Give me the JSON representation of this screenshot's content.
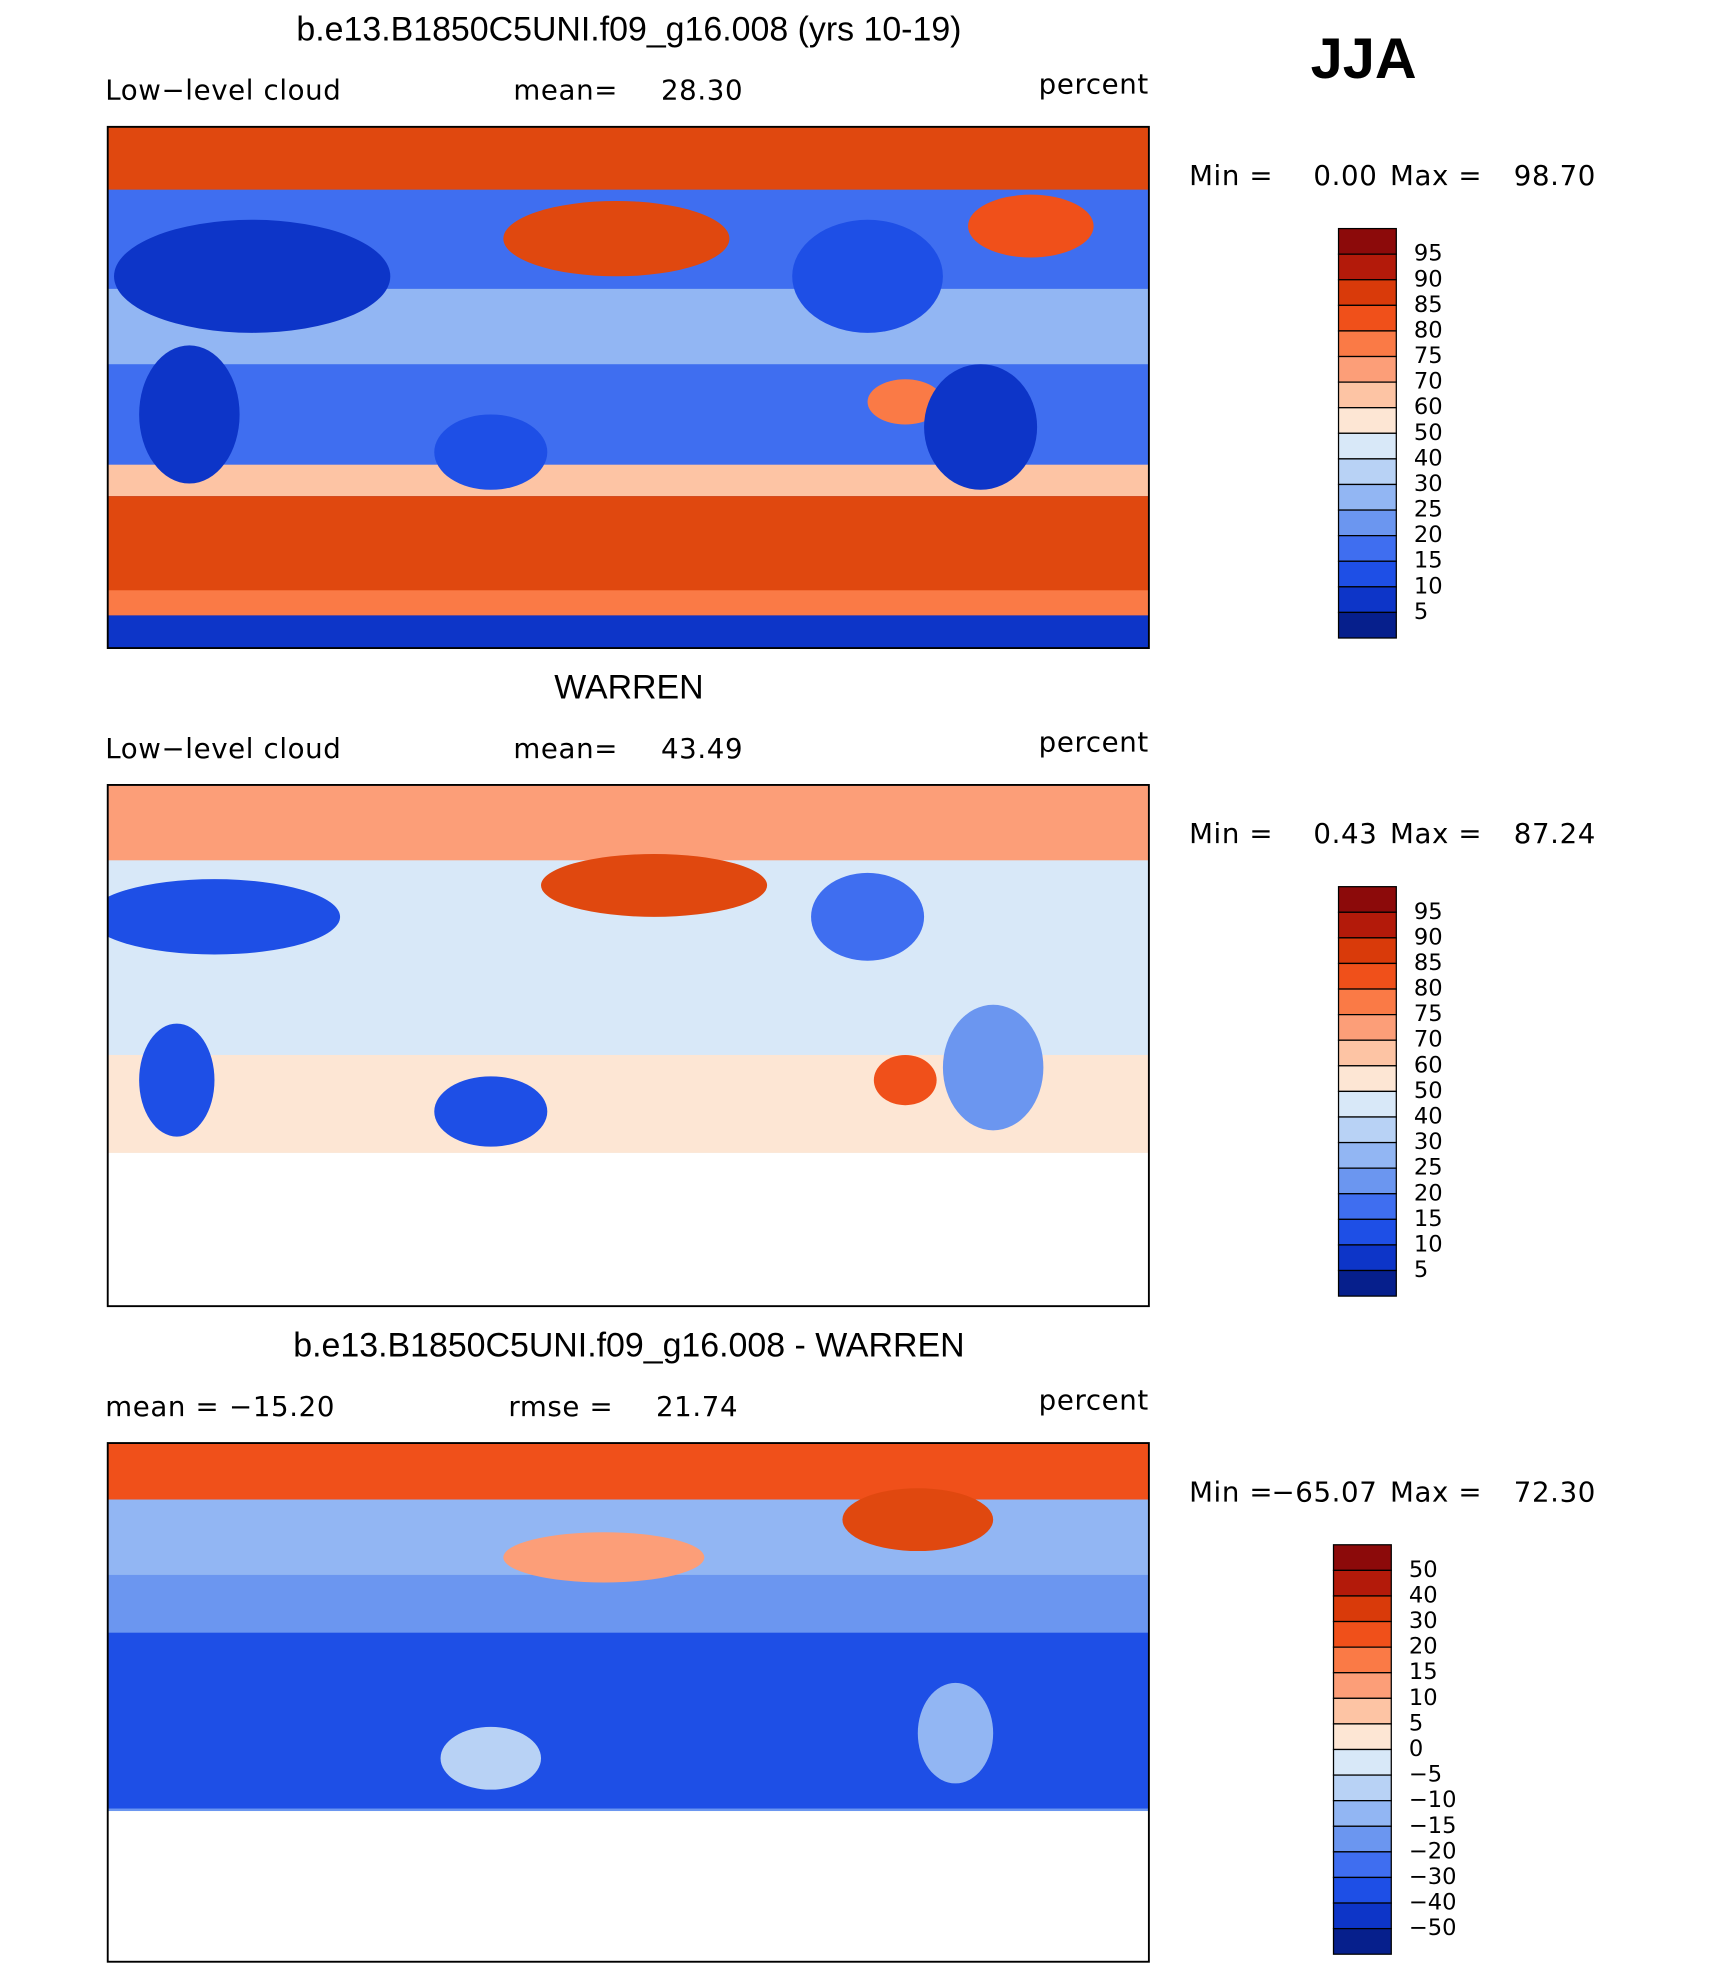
{
  "header": {
    "season": "JJA"
  },
  "panels": [
    {
      "title": "b.e13.B1850C5UNI.f09_g16.008 (yrs 10-19)",
      "left_label": "Low−level cloud",
      "stats": [
        {
          "label": "mean=",
          "value": "28.30"
        }
      ],
      "units": "percent",
      "range": {
        "min_label": "Min =",
        "min": "0.00",
        "max_label": "Max =",
        "max": "98.70"
      },
      "colorbar": {
        "labels": [
          "95",
          "90",
          "85",
          "80",
          "75",
          "70",
          "60",
          "50",
          "40",
          "30",
          "25",
          "20",
          "15",
          "10",
          "5"
        ],
        "colors": [
          "#8c0a0a",
          "#b31a0a",
          "#d93a0a",
          "#f0501a",
          "#fa7a46",
          "#fc9e78",
          "#fdc4a4",
          "#fde6d4",
          "#d8e8f8",
          "#b8d2f5",
          "#92b6f3",
          "#6b96f0",
          "#3f6ef0",
          "#1e4fe6",
          "#0d35c8",
          "#061f8c"
        ]
      }
    },
    {
      "title": "WARREN",
      "left_label": "Low−level cloud",
      "stats": [
        {
          "label": "mean=",
          "value": "43.49"
        }
      ],
      "units": "percent",
      "range": {
        "min_label": "Min =",
        "min": "0.43",
        "max_label": "Max =",
        "max": "87.24"
      },
      "colorbar": {
        "labels": [
          "95",
          "90",
          "85",
          "80",
          "75",
          "70",
          "60",
          "50",
          "40",
          "30",
          "25",
          "20",
          "15",
          "10",
          "5"
        ],
        "colors": [
          "#8c0a0a",
          "#b31a0a",
          "#d93a0a",
          "#f0501a",
          "#fa7a46",
          "#fc9e78",
          "#fdc4a4",
          "#fde6d4",
          "#d8e8f8",
          "#b8d2f5",
          "#92b6f3",
          "#6b96f0",
          "#3f6ef0",
          "#1e4fe6",
          "#0d35c8",
          "#061f8c"
        ]
      }
    },
    {
      "title": "b.e13.B1850C5UNI.f09_g16.008 - WARREN",
      "left_label": null,
      "stats": [
        {
          "label": "mean =",
          "value": "−15.20"
        },
        {
          "label": "rmse =",
          "value": "21.74"
        }
      ],
      "units": "percent",
      "range": {
        "min_label": "Min =",
        "min": "−65.07",
        "max_label": "Max =",
        "max": "72.30"
      },
      "colorbar": {
        "labels": [
          "50",
          "40",
          "30",
          "20",
          "15",
          "10",
          "5",
          "0",
          "−5",
          "−10",
          "−15",
          "−20",
          "−30",
          "−40",
          "−50"
        ],
        "colors": [
          "#8c0a0a",
          "#b31a0a",
          "#d93a0a",
          "#f0501a",
          "#fa7a46",
          "#fc9e78",
          "#fdc4a4",
          "#fde6d4",
          "#d8e8f8",
          "#b8d2f5",
          "#92b6f3",
          "#6b96f0",
          "#3f6ef0",
          "#1e4fe6",
          "#0d35c8",
          "#061f8c"
        ]
      }
    }
  ]
}
